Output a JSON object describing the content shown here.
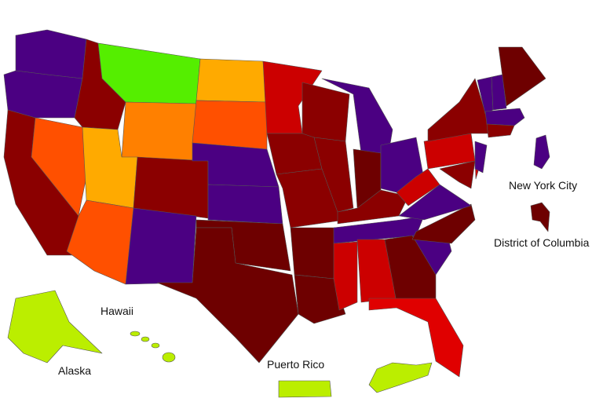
{
  "labels": {
    "new_york_city": "New York City",
    "district_of_columbia": "District of Columbia",
    "hawaii": "Hawaii",
    "alaska": "Alaska",
    "puerto_rico": "Puerto Rico"
  },
  "palette": {
    "purple": "#4b0082",
    "dark_red": "#8b0000",
    "darkest_red": "#6e0000",
    "red": "#cc0000",
    "bright_red": "#e00000",
    "orange_red": "#ff5000",
    "orange": "#ff8000",
    "amber": "#ffaa00",
    "green": "#55ee00",
    "yellow_green": "#bbee00"
  },
  "regions": {
    "Washington": "purple",
    "Oregon": "purple",
    "California": "dark_red",
    "Nevada": "orange_red",
    "Idaho": "dark_red",
    "Montana": "green",
    "Wyoming": "orange",
    "Utah": "amber",
    "Arizona": "orange_red",
    "Colorado": "dark_red",
    "New Mexico": "purple",
    "North Dakota": "amber",
    "South Dakota": "orange_red",
    "Nebraska": "purple",
    "Kansas": "purple",
    "Oklahoma": "darkest_red",
    "Texas": "darkest_red",
    "Minnesota": "red",
    "Iowa": "dark_red",
    "Missouri": "dark_red",
    "Arkansas": "darkest_red",
    "Louisiana": "darkest_red",
    "Wisconsin": "dark_red",
    "Illinois": "dark_red",
    "Michigan": "purple",
    "Indiana": "darkest_red",
    "Ohio": "purple",
    "Kentucky": "dark_red",
    "Tennessee": "purple",
    "Mississippi": "red",
    "Alabama": "red",
    "Georgia": "darkest_red",
    "Florida": "bright_red",
    "South Carolina": "purple",
    "North Carolina": "darkest_red",
    "Virginia": "purple",
    "West Virginia": "red",
    "Pennsylvania": "red",
    "New York": "dark_red",
    "Maryland": "dark_red",
    "Delaware": "red",
    "New Jersey": "purple",
    "Vermont": "purple",
    "New Hampshire": "purple",
    "Massachusetts": "purple",
    "Maine": "darkest_red",
    "Connecticut": "dark_red",
    "New York City": "purple",
    "District of Columbia": "darkest_red",
    "Alaska": "yellow_green",
    "Hawaii": "yellow_green",
    "Puerto Rico": "yellow_green",
    "Virgin Islands": "yellow_green"
  }
}
